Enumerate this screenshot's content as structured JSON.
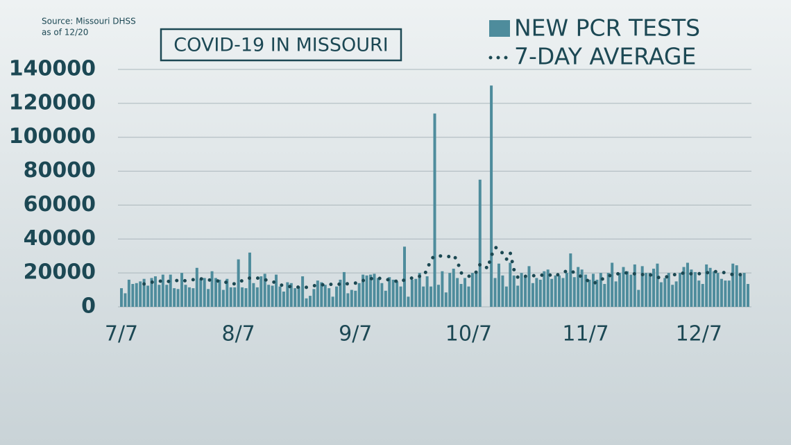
{
  "source": [
    "Source: Missouri DHSS",
    "as of 12/20"
  ],
  "chart_data": {
    "type": "bar",
    "title": "COVID-19 IN MISSOURI",
    "categories": [
      "7/7",
      null,
      null,
      null,
      null,
      null,
      null,
      null,
      null,
      null,
      null,
      null,
      null,
      null,
      null,
      null,
      null,
      null,
      null,
      null,
      null,
      null,
      null,
      null,
      null,
      null,
      null,
      null,
      null,
      null,
      null,
      "8/7",
      null,
      null,
      null,
      null,
      null,
      null,
      null,
      null,
      null,
      null,
      null,
      null,
      null,
      null,
      null,
      null,
      null,
      null,
      null,
      null,
      null,
      null,
      null,
      null,
      null,
      null,
      null,
      null,
      null,
      null,
      "9/7",
      null,
      null,
      null,
      null,
      null,
      null,
      null,
      null,
      null,
      null,
      null,
      null,
      null,
      null,
      null,
      null,
      null,
      null,
      null,
      null,
      null,
      null,
      null,
      null,
      null,
      null,
      null,
      null,
      null,
      "10/7",
      null,
      null,
      null,
      null,
      null,
      null,
      null,
      null,
      null,
      null,
      null,
      null,
      null,
      null,
      null,
      null,
      null,
      null,
      null,
      null,
      null,
      null,
      null,
      null,
      null,
      null,
      null,
      null,
      null,
      null,
      "11/7",
      null,
      null,
      null,
      null,
      null,
      null,
      null,
      null,
      null,
      null,
      null,
      null,
      null,
      null,
      null,
      null,
      null,
      null,
      null,
      null,
      null,
      null,
      null,
      null,
      null,
      null,
      null,
      null,
      null,
      "12/7",
      null,
      null,
      null,
      null,
      null,
      null,
      null,
      null,
      null,
      null,
      null,
      null,
      null
    ],
    "series": [
      {
        "name": "NEW PCR TESTS",
        "color": "#4e8c9c",
        "values": [
          11000,
          8000,
          16000,
          13500,
          14000,
          15000,
          16500,
          12500,
          17000,
          18000,
          13000,
          19000,
          13000,
          19000,
          11000,
          10500,
          20000,
          13000,
          11500,
          11000,
          23000,
          16500,
          17000,
          10500,
          21000,
          17000,
          16000,
          10000,
          16500,
          11500,
          11500,
          28000,
          11500,
          11000,
          32000,
          14000,
          11500,
          18000,
          19500,
          13000,
          12500,
          19000,
          12000,
          9000,
          14500,
          14000,
          11000,
          12000,
          18000,
          5000,
          6500,
          10500,
          15500,
          14500,
          13000,
          11000,
          6000,
          12000,
          16000,
          20500,
          8000,
          10000,
          9500,
          14000,
          19000,
          18500,
          19000,
          19500,
          17000,
          14000,
          9500,
          17500,
          16000,
          15000,
          12000,
          35500,
          6000,
          16000,
          16500,
          20000,
          12000,
          18000,
          12000,
          114000,
          13000,
          21000,
          8500,
          20000,
          22500,
          17000,
          13500,
          17000,
          12000,
          20000,
          21000,
          75000,
          null,
          null,
          130500,
          17000,
          25500,
          18500,
          12000,
          26000,
          18500,
          12500,
          20000,
          18500,
          24000,
          14000,
          17000,
          16000,
          21000,
          22000,
          16500,
          18500,
          18500,
          17000,
          20000,
          31500,
          17500,
          23500,
          22000,
          19000,
          16000,
          19500,
          16000,
          20000,
          13500,
          20000,
          26000,
          15000,
          20000,
          23500,
          21000,
          19000,
          25000,
          10000,
          24000,
          20000,
          20000,
          22500,
          25500,
          14500,
          17000,
          20000,
          13000,
          15000,
          20000,
          23500,
          26000,
          22000,
          20500,
          15500,
          13500,
          25000,
          23000,
          21000,
          20000,
          16500,
          15500,
          15500,
          25500,
          24500,
          19000,
          20000,
          13500
        ]
      },
      {
        "name": "7-DAY AVERAGE",
        "color": "#1b4852",
        "values": [
          null,
          null,
          null,
          null,
          null,
          null,
          13500,
          14000,
          14500,
          15000,
          15000,
          15500,
          15000,
          15000,
          15500,
          15500,
          15000,
          15500,
          16000,
          16000,
          16500,
          16500,
          16500,
          16000,
          15500,
          15500,
          15000,
          14500,
          14500,
          14000,
          13500,
          14000,
          15500,
          16500,
          17000,
          17000,
          17000,
          16500,
          16000,
          15500,
          15000,
          14000,
          13000,
          12500,
          12000,
          12000,
          12000,
          11500,
          11500,
          11500,
          12000,
          12500,
          12500,
          13000,
          13000,
          13500,
          13000,
          13000,
          13500,
          14000,
          13500,
          13500,
          14000,
          14500,
          15500,
          16000,
          16500,
          17000,
          17000,
          16500,
          16000,
          16000,
          15500,
          15000,
          14500,
          16000,
          16500,
          17000,
          17000,
          18000,
          18000,
          22000,
          28000,
          30000,
          30000,
          30000,
          30000,
          29500,
          30500,
          27000,
          20000,
          19000,
          18000,
          18500,
          20500,
          25000,
          25000,
          22500,
          30000,
          35000,
          34500,
          31500,
          28000,
          32000,
          22000,
          17500,
          17000,
          18000,
          18000,
          18500,
          18000,
          18500,
          19000,
          19000,
          18500,
          18000,
          19500,
          20500,
          21000,
          21500,
          20000,
          19000,
          17500,
          16000,
          15000,
          14000,
          14500,
          15500,
          17500,
          18000,
          19000,
          19500,
          19500,
          20000,
          20000,
          19500,
          19500,
          19500,
          19000,
          19500,
          19000,
          18000,
          17500,
          17000,
          17500,
          18000,
          19000,
          19000,
          19500,
          20000,
          19500,
          19500,
          19500,
          19500,
          20000,
          20000,
          20500,
          21000,
          20500,
          20500,
          20000,
          19500,
          19000,
          19000,
          19000,
          19000,
          19000
        ]
      }
    ],
    "ylim": [
      0,
      140000
    ],
    "yticks": [
      0,
      20000,
      40000,
      60000,
      80000,
      100000,
      120000,
      140000
    ],
    "grid": true,
    "legend": "top-right"
  }
}
